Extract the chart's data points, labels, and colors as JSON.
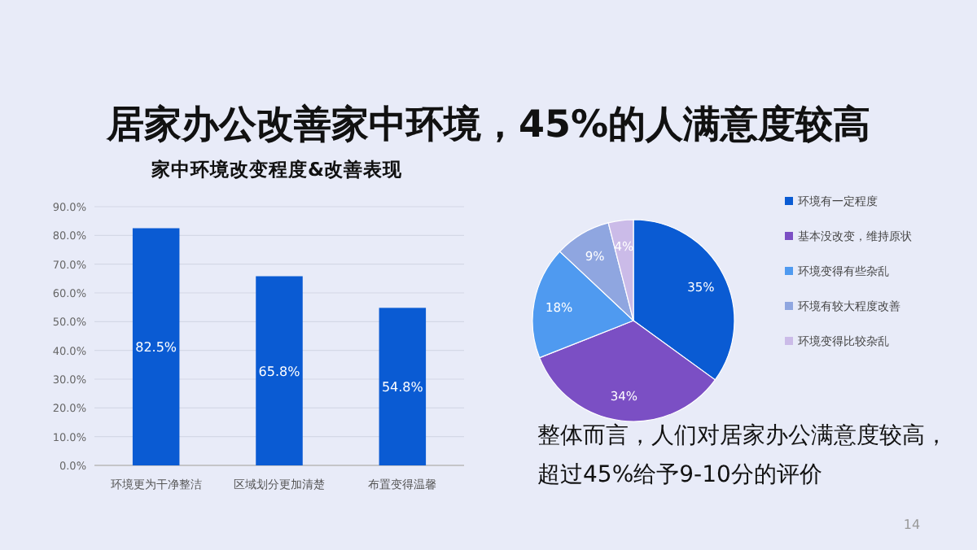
{
  "chart_data": [
    {
      "type": "other",
      "title": "居家办公改善家中环境，45%的人满意度较高",
      "annotations": [
        "整体而言，人们对居家办公满意度较高，",
        "超过45%给予9-10分的评价",
        "14"
      ]
    },
    {
      "type": "bar",
      "title": "家中环境改变程度&改善表现",
      "categories": [
        "环境更为干净整洁",
        "区域划分更加清楚",
        "布置变得温馨"
      ],
      "values": [
        82.5,
        65.8,
        54.8
      ],
      "value_labels": [
        "82.5%",
        "65.8%",
        "54.8%"
      ],
      "color": "#0a5bd3",
      "ylim": [
        0,
        90
      ],
      "yticks": [
        {
          "value": 0,
          "label": "0.0%"
        },
        {
          "value": 10,
          "label": "10.0%"
        },
        {
          "value": 20,
          "label": "20.0%"
        },
        {
          "value": 30,
          "label": "30.0%"
        },
        {
          "value": 40,
          "label": "40.0%"
        },
        {
          "value": 50,
          "label": "50.0%"
        },
        {
          "value": 60,
          "label": "60.0%"
        },
        {
          "value": 70,
          "label": "70.0%"
        },
        {
          "value": 80,
          "label": "80.0%"
        },
        {
          "value": 90,
          "label": "90.0%"
        }
      ],
      "grid": "y"
    },
    {
      "type": "pie",
      "categories": [
        "环境有一定程度",
        "基本没改变，维持原状",
        "环境变得有些杂乱",
        "环境有较大程度改善",
        "环境变得比较杂乱"
      ],
      "values": [
        35,
        34,
        18,
        9,
        4
      ],
      "value_labels": [
        "35%",
        "34%",
        "18%",
        "9%",
        "4%"
      ],
      "colors": [
        "#0a5bd3",
        "#7b4fc4",
        "#4f9af0",
        "#8fa6e0",
        "#cbbbe8"
      ],
      "legend": "right"
    }
  ]
}
